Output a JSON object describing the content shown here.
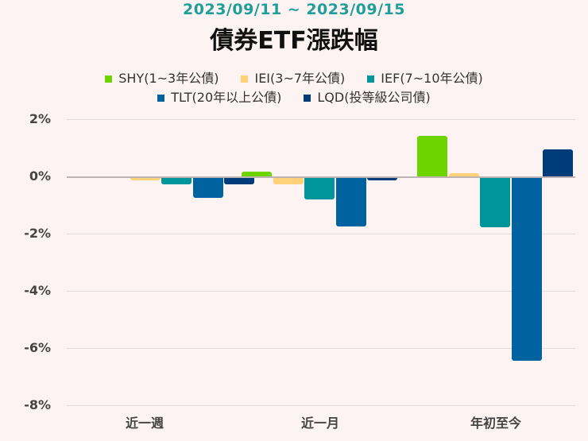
{
  "header": {
    "subtitle": "2023/09/11 ~ 2023/09/15",
    "title": "債券ETF漲跌幅"
  },
  "legend": [
    {
      "label": "SHY(1~3年公債)",
      "color": "#6dd400"
    },
    {
      "label": "IEI(3~7年公債)",
      "color": "#ffd27a"
    },
    {
      "label": "IEF(7~10年公債)",
      "color": "#00959a"
    },
    {
      "label": "TLT(20年以上公債)",
      "color": "#0063a0"
    },
    {
      "label": "LQD(投等級公司債)",
      "color": "#003b7a"
    }
  ],
  "yaxis": {
    "ticks": [
      "2%",
      "0%",
      "-2%",
      "-4%",
      "-6%",
      "-8%"
    ]
  },
  "xaxis": {
    "categories": [
      "近一週",
      "近一月",
      "年初至今"
    ]
  },
  "chart_data": {
    "type": "bar",
    "title": "債券ETF漲跌幅",
    "subtitle": "2023/09/11 ~ 2023/09/15",
    "xlabel": "",
    "ylabel": "",
    "categories": [
      "近一週",
      "近一月",
      "年初至今"
    ],
    "series": [
      {
        "name": "SHY(1~3年公債)",
        "color": "#6dd400",
        "values": [
          0.0,
          0.17,
          1.42
        ]
      },
      {
        "name": "IEI(3~7年公債)",
        "color": "#ffd27a",
        "values": [
          -0.13,
          -0.27,
          0.12
        ]
      },
      {
        "name": "IEF(7~10年公債)",
        "color": "#00959a",
        "values": [
          -0.28,
          -0.8,
          -1.78
        ]
      },
      {
        "name": "TLT(20年以上公債)",
        "color": "#0063a0",
        "values": [
          -0.75,
          -1.75,
          -6.44
        ]
      },
      {
        "name": "LQD(投等級公司債)",
        "color": "#003b7a",
        "values": [
          -0.28,
          -0.13,
          0.94
        ]
      }
    ],
    "ylim": [
      -8,
      2
    ],
    "yticks": [
      "2%",
      "0%",
      "-2%",
      "-4%",
      "-6%",
      "-8%"
    ],
    "grid": true,
    "legend_position": "top"
  }
}
